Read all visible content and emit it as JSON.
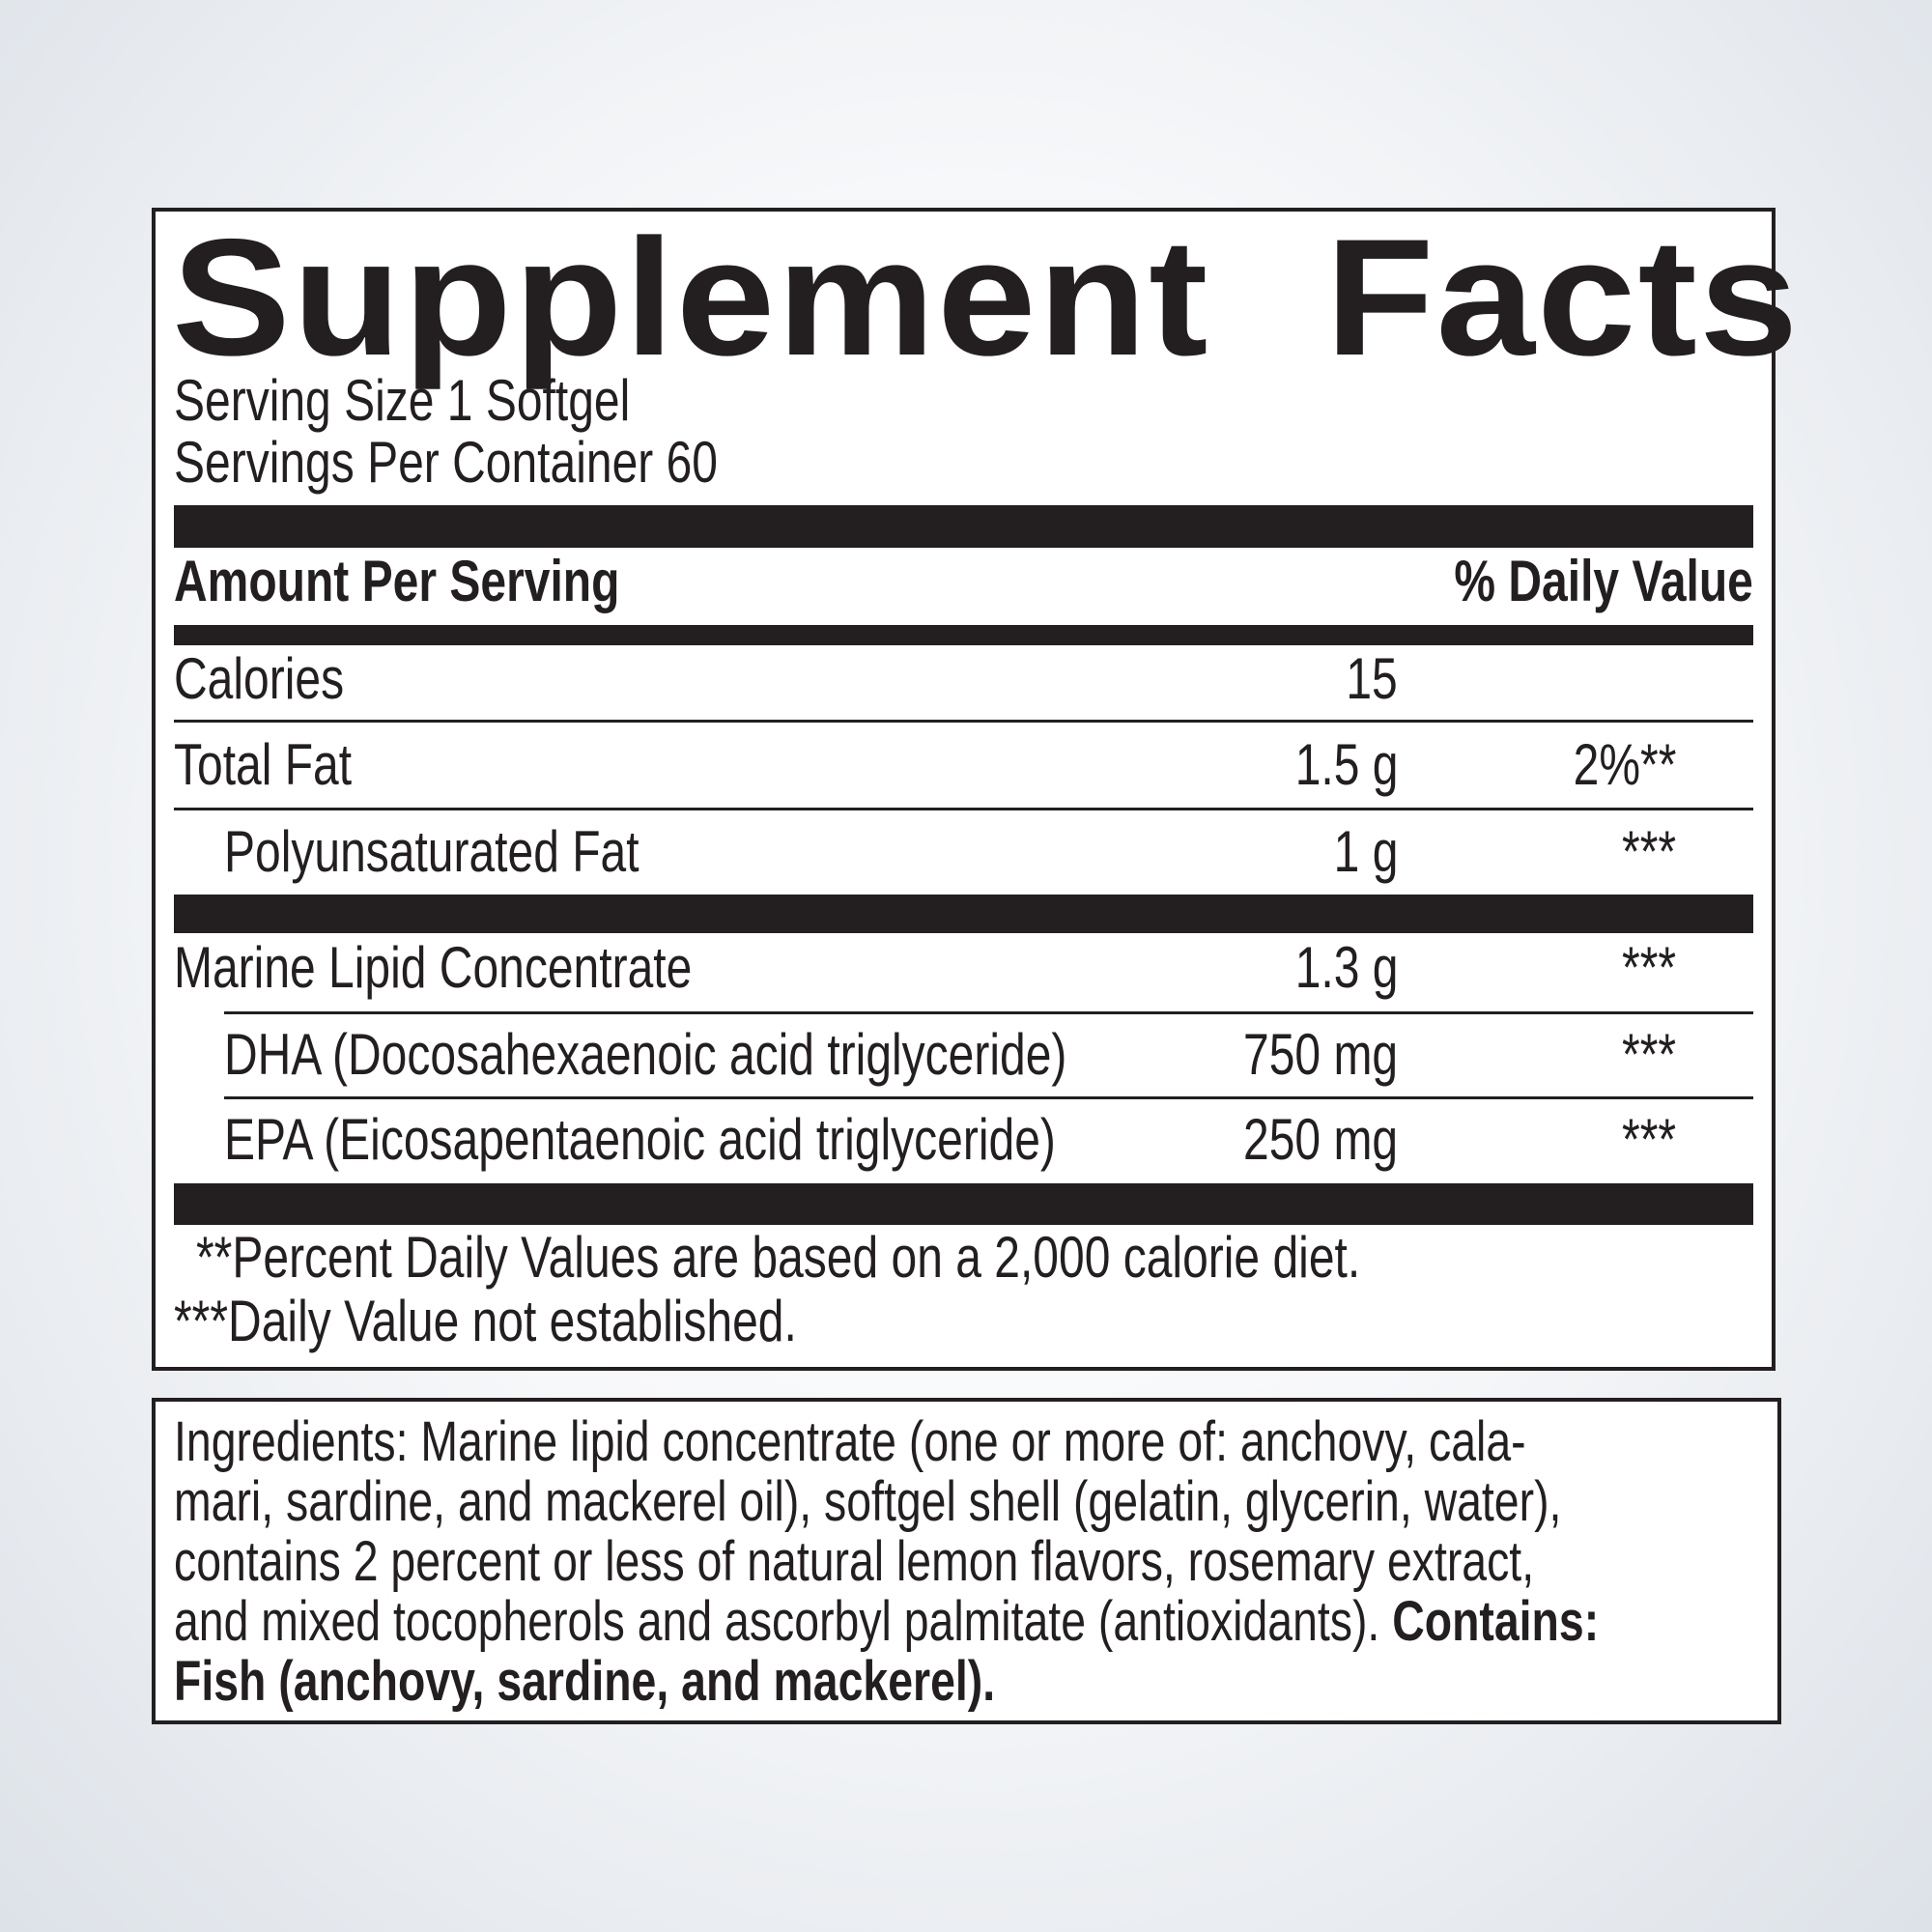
{
  "label": {
    "title_left": "Supplement",
    "title_right": "Facts",
    "serving_size": "Serving Size 1 Softgel",
    "servings_per_container": "Servings Per Container 60",
    "header_amount": "Amount Per Serving",
    "header_dv": "% Daily Value",
    "rows": [
      {
        "name": "Calories",
        "amount": "15",
        "dv": ""
      },
      {
        "name": "Total Fat",
        "amount": "1.5 g",
        "dv": "2%**"
      },
      {
        "name": "Polyunsaturated Fat",
        "amount": "1 g",
        "dv": "***"
      },
      {
        "name": "Marine Lipid Concentrate",
        "amount": "1.3 g",
        "dv": "***"
      },
      {
        "name": "DHA (Docosahexaenoic acid triglyceride)",
        "amount": "750 mg",
        "dv": "***"
      },
      {
        "name": "EPA (Eicosapentaenoic acid triglyceride)",
        "amount": "250 mg",
        "dv": "***"
      }
    ],
    "footnote_1": "**Percent Daily Values are based on a 2,000 calorie diet.",
    "footnote_2": "***Daily Value not established."
  },
  "ingredients": {
    "lines": [
      "Ingredients: Marine lipid concentrate (one or more of: anchovy, cala-",
      "mari, sardine, and mackerel oil), softgel shell (gelatin, glycerin, water),",
      "contains 2 percent or less of natural lemon flavors, rosemary extract,",
      "and mixed tocopherols and ascorbyl palmitate (antioxidants). "
    ],
    "contains_label": "Contains:",
    "contains_text": "Fish (anchovy, sardine, and mackerel)."
  }
}
